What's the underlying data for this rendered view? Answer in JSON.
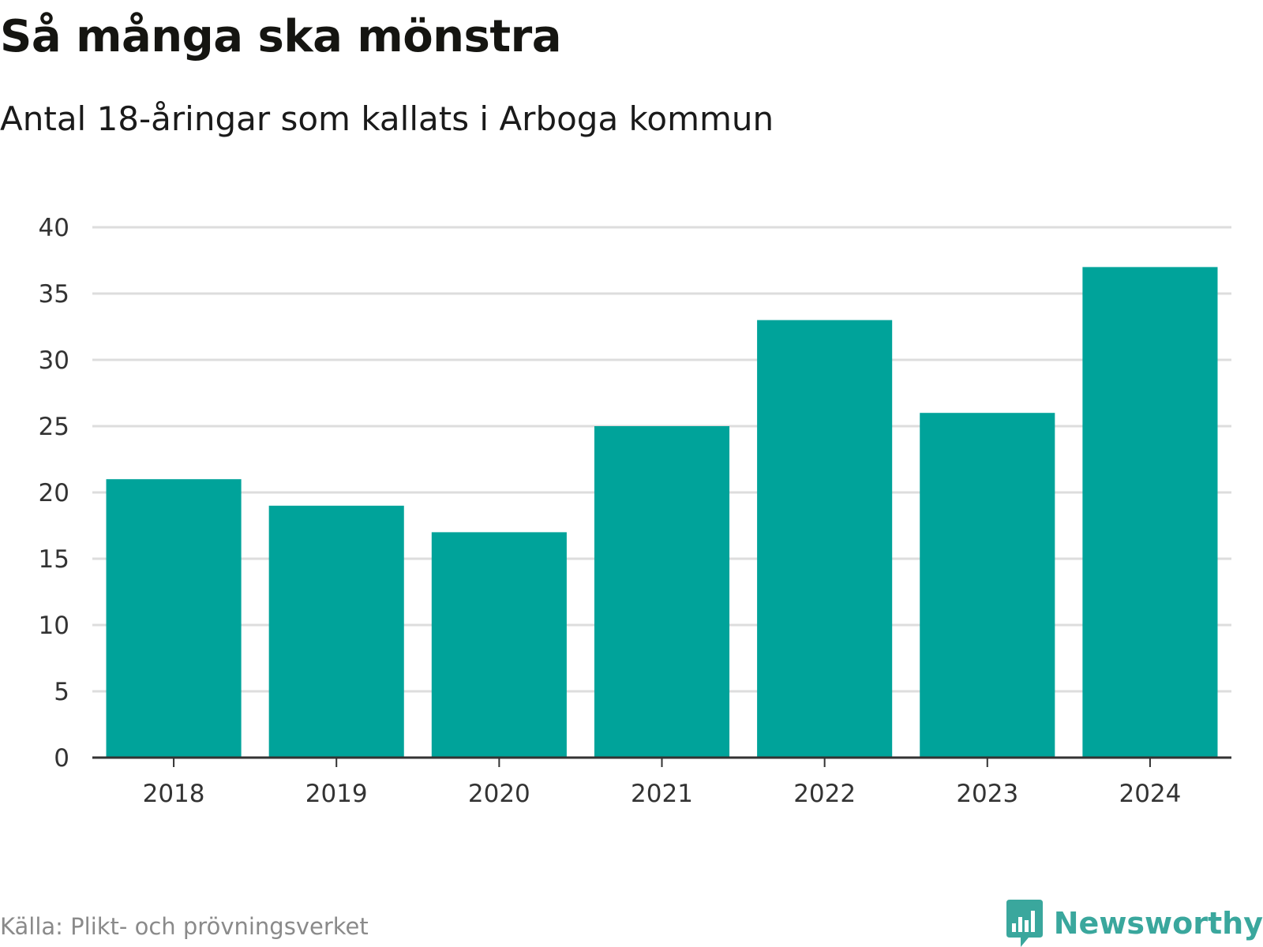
{
  "header": {
    "title": "Så många ska mönstra",
    "subtitle": "Antal 18-åringar som kallats i Arboga kommun"
  },
  "footer": {
    "source": "Källa: Plikt- och prövningsverket",
    "brand": "Newsworthy",
    "logo_icon": "newsworthy-chart-bubble-icon"
  },
  "colors": {
    "bar": "#00a39a",
    "grid": "#dddddd",
    "axis": "#333333",
    "brand": "#3aa79d"
  },
  "chart_data": {
    "type": "bar",
    "title": "Så många ska mönstra",
    "subtitle": "Antal 18-åringar som kallats i Arboga kommun",
    "categories": [
      "2018",
      "2019",
      "2020",
      "2021",
      "2022",
      "2023",
      "2024"
    ],
    "values": [
      21,
      19,
      17,
      25,
      33,
      26,
      37
    ],
    "xlabel": "",
    "ylabel": "",
    "ylim": [
      0,
      40
    ],
    "yticks": [
      0,
      5,
      10,
      15,
      20,
      25,
      30,
      35,
      40
    ],
    "grid": true,
    "legend": "none"
  }
}
